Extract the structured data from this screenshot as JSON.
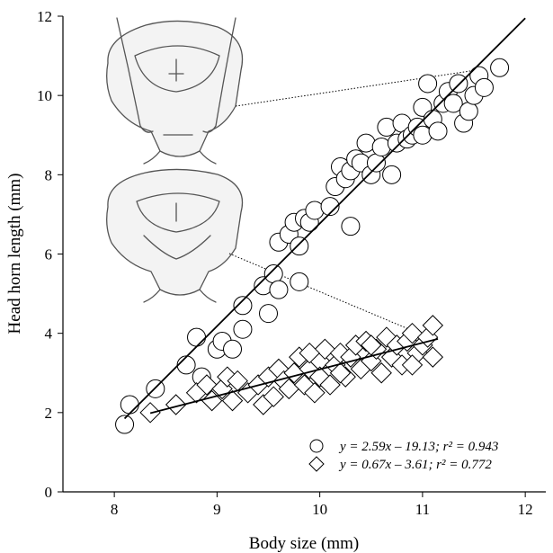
{
  "chart_data": {
    "type": "scatter",
    "xlabel": "Body size (mm)",
    "ylabel": "Head horn length (mm)",
    "xlim": [
      7.5,
      12.2
    ],
    "ylim": [
      0,
      12
    ],
    "xticks": [
      8,
      9,
      10,
      11,
      12
    ],
    "yticks": [
      0,
      2,
      4,
      6,
      8,
      10,
      12
    ],
    "series": [
      {
        "marker": "circle",
        "fit": {
          "slope": 2.59,
          "intercept": -19.13,
          "x_range": [
            8.1,
            12.0
          ]
        },
        "points": [
          [
            8.1,
            1.7
          ],
          [
            8.15,
            2.2
          ],
          [
            8.4,
            2.6
          ],
          [
            8.7,
            3.2
          ],
          [
            8.8,
            3.9
          ],
          [
            8.85,
            2.9
          ],
          [
            9.0,
            3.6
          ],
          [
            9.05,
            3.8
          ],
          [
            9.15,
            3.6
          ],
          [
            9.25,
            4.1
          ],
          [
            9.25,
            4.7
          ],
          [
            9.45,
            5.2
          ],
          [
            9.5,
            4.5
          ],
          [
            9.55,
            5.5
          ],
          [
            9.6,
            5.1
          ],
          [
            9.6,
            6.3
          ],
          [
            9.7,
            6.5
          ],
          [
            9.75,
            6.8
          ],
          [
            9.8,
            6.2
          ],
          [
            9.85,
            6.9
          ],
          [
            9.9,
            6.8
          ],
          [
            9.8,
            5.3
          ],
          [
            9.95,
            7.1
          ],
          [
            10.1,
            7.2
          ],
          [
            10.15,
            7.7
          ],
          [
            10.2,
            8.2
          ],
          [
            10.25,
            7.9
          ],
          [
            10.3,
            8.1
          ],
          [
            10.35,
            8.4
          ],
          [
            10.3,
            6.7
          ],
          [
            10.4,
            8.3
          ],
          [
            10.45,
            8.8
          ],
          [
            10.5,
            8.0
          ],
          [
            10.55,
            8.3
          ],
          [
            10.6,
            8.7
          ],
          [
            10.65,
            9.2
          ],
          [
            10.7,
            8.0
          ],
          [
            10.75,
            8.8
          ],
          [
            10.8,
            9.3
          ],
          [
            10.85,
            8.9
          ],
          [
            10.9,
            9.0
          ],
          [
            10.95,
            9.2
          ],
          [
            11.0,
            9.0
          ],
          [
            11.0,
            9.7
          ],
          [
            11.05,
            10.3
          ],
          [
            11.1,
            9.4
          ],
          [
            11.15,
            9.1
          ],
          [
            11.2,
            9.8
          ],
          [
            11.25,
            10.1
          ],
          [
            11.3,
            9.8
          ],
          [
            11.35,
            10.3
          ],
          [
            11.4,
            9.3
          ],
          [
            11.45,
            9.6
          ],
          [
            11.5,
            10.0
          ],
          [
            11.55,
            10.5
          ],
          [
            11.6,
            10.2
          ],
          [
            11.75,
            10.7
          ]
        ]
      },
      {
        "marker": "diamond",
        "fit": {
          "slope": 0.67,
          "intercept": -3.61,
          "x_range": [
            8.35,
            11.15
          ]
        },
        "points": [
          [
            8.35,
            2.0
          ],
          [
            8.6,
            2.2
          ],
          [
            8.8,
            2.5
          ],
          [
            8.9,
            2.7
          ],
          [
            8.95,
            2.3
          ],
          [
            9.05,
            2.6
          ],
          [
            9.1,
            2.9
          ],
          [
            9.15,
            2.3
          ],
          [
            9.2,
            2.8
          ],
          [
            9.3,
            2.5
          ],
          [
            9.4,
            2.7
          ],
          [
            9.45,
            2.2
          ],
          [
            9.5,
            2.9
          ],
          [
            9.55,
            2.4
          ],
          [
            9.6,
            3.1
          ],
          [
            9.65,
            2.8
          ],
          [
            9.7,
            2.6
          ],
          [
            9.75,
            3.0
          ],
          [
            9.8,
            3.4
          ],
          [
            9.85,
            2.7
          ],
          [
            9.9,
            3.1
          ],
          [
            9.95,
            2.5
          ],
          [
            10.0,
            3.3
          ],
          [
            10.0,
            2.9
          ],
          [
            10.05,
            3.6
          ],
          [
            10.1,
            2.7
          ],
          [
            10.15,
            3.2
          ],
          [
            10.2,
            3.5
          ],
          [
            10.25,
            2.9
          ],
          [
            10.3,
            3.4
          ],
          [
            10.35,
            3.7
          ],
          [
            10.4,
            3.1
          ],
          [
            10.45,
            3.8
          ],
          [
            10.5,
            3.3
          ],
          [
            10.55,
            3.6
          ],
          [
            10.6,
            3.0
          ],
          [
            10.65,
            3.9
          ],
          [
            10.7,
            3.4
          ],
          [
            10.75,
            3.7
          ],
          [
            10.8,
            3.2
          ],
          [
            10.85,
            3.8
          ],
          [
            10.9,
            4.0
          ],
          [
            10.95,
            3.5
          ],
          [
            11.0,
            3.7
          ],
          [
            11.05,
            3.9
          ],
          [
            11.1,
            3.4
          ],
          [
            11.1,
            4.2
          ],
          [
            10.9,
            3.2
          ],
          [
            10.5,
            3.7
          ],
          [
            10.2,
            3.0
          ],
          [
            9.9,
            3.5
          ]
        ]
      }
    ],
    "legend": [
      {
        "marker": "circle",
        "text": "y = 2.59x – 19.13; r² = 0.943"
      },
      {
        "marker": "diamond",
        "text": "y = 0.67x – 3.61;  r² = 0.772"
      }
    ],
    "legend_position": "bottom-right",
    "grid": false
  }
}
